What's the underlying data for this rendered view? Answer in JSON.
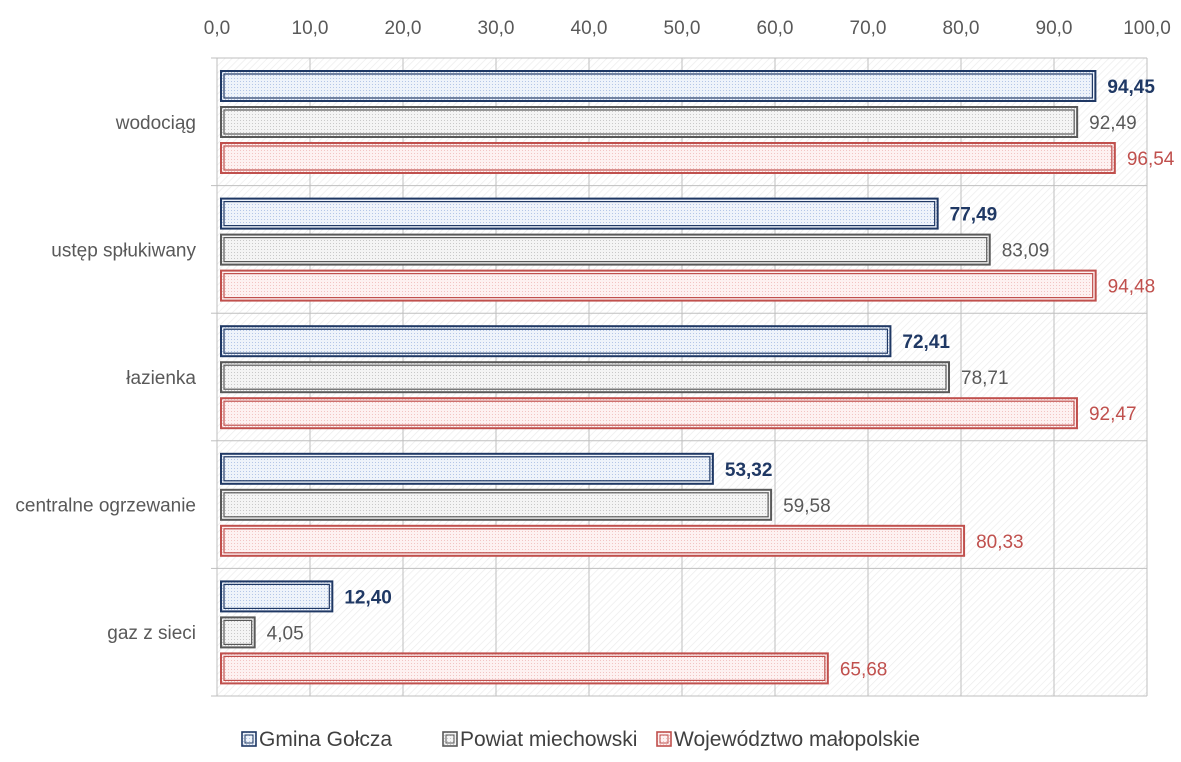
{
  "chart_data": {
    "type": "bar",
    "orientation": "horizontal",
    "categories": [
      "wodociąg",
      "ustęp spłukiwany",
      "łazienka",
      "centralne ogrzewanie",
      "gaz z sieci"
    ],
    "series": [
      {
        "name": "Gmina Gołcza",
        "values": [
          94.45,
          77.49,
          72.41,
          53.32,
          12.4
        ],
        "labels": [
          "94,45",
          "77,49",
          "72,41",
          "53,32",
          "12,40"
        ],
        "color": "#1f3864",
        "label_bold": true
      },
      {
        "name": "Powiat miechowski",
        "values": [
          92.49,
          83.09,
          78.71,
          59.58,
          4.05
        ],
        "labels": [
          "92,49",
          "83,09",
          "78,71",
          "59,58",
          "4,05"
        ],
        "color": "#595959",
        "label_bold": false
      },
      {
        "name": "Województwo małopolskie",
        "values": [
          96.54,
          94.48,
          92.47,
          80.33,
          65.68
        ],
        "labels": [
          "96,54",
          "94,48",
          "92,47",
          "80,33",
          "65,68"
        ],
        "color": "#c0504d",
        "label_bold": false
      }
    ],
    "xlim": [
      0,
      100
    ],
    "xticks": [
      "0,0",
      "10,0",
      "20,0",
      "30,0",
      "40,0",
      "50,0",
      "60,0",
      "70,0",
      "80,0",
      "90,0",
      "100,0"
    ],
    "x_axis_position": "top",
    "grid": true,
    "legend_position": "bottom"
  }
}
